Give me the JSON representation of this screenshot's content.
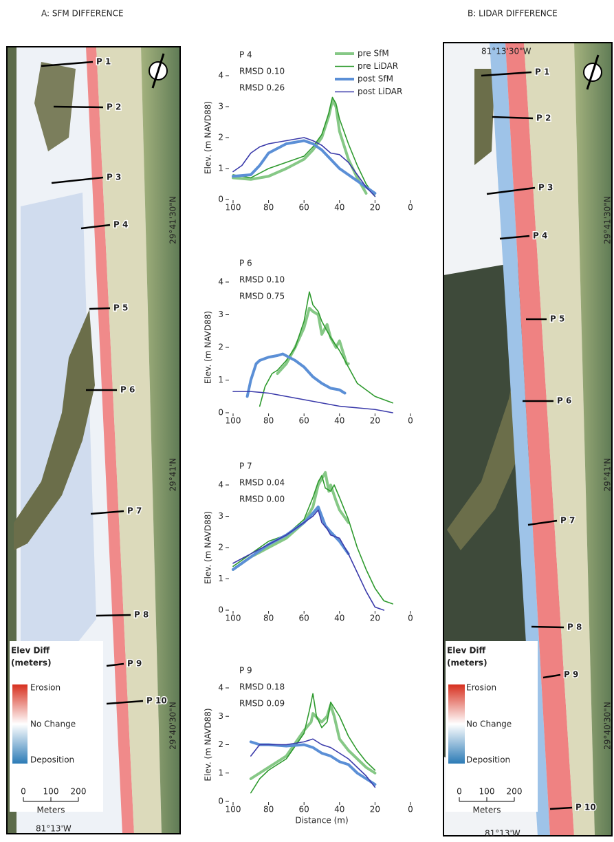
{
  "maps": [
    {
      "title": "A: SFM DIFFERENCE",
      "profiles": [
        "P 1",
        "P 2",
        "P 3",
        "P 4",
        "P 5",
        "P 6",
        "P 7",
        "P 8",
        "P 9",
        "P 10"
      ],
      "legend_title": [
        "Elev Diff",
        "(meters)"
      ],
      "legend_labels": [
        "Erosion",
        "No Change",
        "Deposition"
      ],
      "scale_ticks": [
        0,
        100,
        200
      ],
      "scale_unit": "Meters",
      "lat_labels": [
        "29°41'30\"N",
        "29°41'N",
        "29°40'30\"N"
      ],
      "lon_labels": [
        "81°13'W"
      ]
    },
    {
      "title": "B: LIDAR DIFFERENCE",
      "profiles": [
        "P 1",
        "P 2",
        "P 3",
        "P 4",
        "P 5",
        "P 6",
        "P 7",
        "P 8",
        "P 9",
        "P 10"
      ],
      "legend_title": [
        "Elev Diff",
        "(meters)"
      ],
      "legend_labels": [
        "Erosion",
        "No Change",
        "Deposition"
      ],
      "scale_ticks": [
        0,
        100,
        200
      ],
      "scale_unit": "Meters",
      "lat_labels": [
        "29°41'30\"N",
        "29°41'N",
        "29°40'30\"N"
      ],
      "lon_labels": [
        "81°13'30\"W",
        "81°13'W"
      ]
    }
  ],
  "chart_data": [
    {
      "type": "line",
      "title": "P 4",
      "ylabel": "Elev. (m NAVD88)",
      "annotations": [
        "RMSD 0.10",
        "RMSD 0.26"
      ],
      "annotation_colors": [
        "#2e9a2e",
        "#3f50b0"
      ],
      "xlim": [
        100,
        0
      ],
      "xticks": [
        100,
        80,
        60,
        40,
        20,
        0
      ],
      "ylim": [
        0,
        4.3
      ],
      "yticks": [
        0,
        1,
        2,
        3,
        4
      ],
      "legend": "upper right",
      "series": [
        {
          "name": "pre SfM",
          "color": "#86c886",
          "x": [
            100,
            90,
            80,
            70,
            60,
            55,
            50,
            46,
            44,
            42,
            40,
            35,
            30,
            25
          ],
          "values": [
            0.7,
            0.65,
            0.75,
            1.0,
            1.3,
            1.6,
            2.0,
            2.7,
            3.2,
            3.0,
            2.2,
            1.3,
            0.7,
            0.2
          ]
        },
        {
          "name": "pre LiDAR",
          "color": "#2e9a2e",
          "x": [
            100,
            90,
            80,
            70,
            60,
            55,
            50,
            46,
            44,
            42,
            40,
            35,
            30,
            25,
            20
          ],
          "values": [
            0.8,
            0.7,
            1.0,
            1.2,
            1.4,
            1.7,
            2.1,
            2.8,
            3.3,
            3.1,
            2.6,
            1.8,
            1.1,
            0.5,
            0.1
          ]
        },
        {
          "name": "post SfM",
          "color": "#5b8fd6",
          "x": [
            100,
            90,
            85,
            80,
            70,
            65,
            60,
            55,
            50,
            45,
            40,
            35,
            30,
            25,
            20
          ],
          "values": [
            0.75,
            0.8,
            1.1,
            1.5,
            1.8,
            1.85,
            1.9,
            1.8,
            1.6,
            1.3,
            1.0,
            0.8,
            0.6,
            0.4,
            0.2
          ]
        },
        {
          "name": "post LiDAR",
          "color": "#3a3aaa",
          "x": [
            100,
            95,
            90,
            85,
            80,
            70,
            60,
            55,
            50,
            45,
            40,
            35,
            30,
            25,
            20
          ],
          "values": [
            0.9,
            1.1,
            1.5,
            1.7,
            1.8,
            1.9,
            2.0,
            1.9,
            1.75,
            1.5,
            1.45,
            1.2,
            0.8,
            0.4,
            0.1
          ]
        }
      ]
    },
    {
      "type": "line",
      "title": "P 6",
      "ylabel": "Elev. (m NAVD88)",
      "annotations": [
        "RMSD 0.10",
        "RMSD 0.75"
      ],
      "annotation_colors": [
        "#2e9a2e",
        "#3f50b0"
      ],
      "xlim": [
        100,
        0
      ],
      "xticks": [
        100,
        80,
        60,
        40,
        20,
        0
      ],
      "ylim": [
        0,
        4.3
      ],
      "yticks": [
        0,
        1,
        2,
        3,
        4
      ],
      "series": [
        {
          "color": "#86c886",
          "x": [
            75,
            70,
            65,
            60,
            57,
            55,
            52,
            50,
            47,
            45,
            42,
            40,
            36,
            35
          ],
          "values": [
            1.2,
            1.5,
            2.0,
            2.6,
            3.2,
            3.1,
            3.0,
            2.4,
            2.7,
            2.3,
            2.0,
            2.2,
            1.5,
            1.5
          ]
        },
        {
          "color": "#2e9a2e",
          "x": [
            85,
            82,
            78,
            75,
            70,
            65,
            60,
            57,
            55,
            52,
            50,
            45,
            40,
            35,
            30,
            20,
            15,
            10
          ],
          "values": [
            0.2,
            0.8,
            1.2,
            1.3,
            1.6,
            2.0,
            2.8,
            3.7,
            3.3,
            3.1,
            2.8,
            2.3,
            1.9,
            1.4,
            0.9,
            0.5,
            0.4,
            0.3
          ]
        },
        {
          "color": "#5b8fd6",
          "x": [
            92,
            90,
            87,
            85,
            80,
            75,
            72,
            65,
            60,
            55,
            50,
            45,
            40,
            37
          ],
          "values": [
            0.5,
            1.0,
            1.5,
            1.6,
            1.7,
            1.75,
            1.8,
            1.6,
            1.4,
            1.1,
            0.9,
            0.75,
            0.7,
            0.6
          ]
        },
        {
          "color": "#3a3aaa",
          "x": [
            100,
            90,
            80,
            70,
            60,
            50,
            40,
            30,
            20,
            10
          ],
          "values": [
            0.65,
            0.65,
            0.6,
            0.5,
            0.4,
            0.3,
            0.2,
            0.15,
            0.1,
            0.0
          ]
        }
      ]
    },
    {
      "type": "line",
      "title": "P 7",
      "ylabel": "Elev. (m NAVD88)",
      "annotations": [
        "RMSD 0.04",
        "RMSD 0.00"
      ],
      "annotation_colors": [
        "#2e9a2e",
        "#3f50b0"
      ],
      "xlim": [
        100,
        0
      ],
      "xticks": [
        100,
        80,
        60,
        40,
        20,
        0
      ],
      "ylim": [
        0,
        4.3
      ],
      "yticks": [
        0,
        1,
        2,
        3,
        4
      ],
      "series": [
        {
          "color": "#86c886",
          "x": [
            100,
            90,
            80,
            70,
            60,
            55,
            52,
            50,
            48,
            46,
            45,
            42,
            40,
            35
          ],
          "values": [
            1.3,
            1.7,
            2.0,
            2.3,
            2.8,
            3.3,
            4.0,
            4.2,
            4.4,
            3.8,
            4.0,
            3.5,
            3.2,
            2.8
          ]
        },
        {
          "color": "#2e9a2e",
          "x": [
            100,
            90,
            80,
            70,
            60,
            55,
            52,
            50,
            48,
            45,
            43,
            40,
            35,
            30,
            25,
            20,
            15,
            10
          ],
          "values": [
            1.4,
            1.8,
            2.2,
            2.4,
            2.9,
            3.6,
            4.1,
            4.3,
            3.9,
            3.8,
            4.0,
            3.6,
            2.9,
            2.0,
            1.3,
            0.7,
            0.3,
            0.2
          ]
        },
        {
          "color": "#5b8fd6",
          "x": [
            100,
            90,
            80,
            70,
            60,
            55,
            52,
            50,
            48,
            45,
            40,
            35
          ],
          "values": [
            1.3,
            1.7,
            2.1,
            2.4,
            2.8,
            3.1,
            3.3,
            3.0,
            2.7,
            2.5,
            2.2,
            1.8
          ]
        },
        {
          "color": "#3a3aaa",
          "x": [
            100,
            90,
            80,
            70,
            60,
            55,
            52,
            50,
            47,
            45,
            40,
            35,
            30,
            25,
            20,
            15
          ],
          "values": [
            1.5,
            1.8,
            2.1,
            2.4,
            2.8,
            3.0,
            3.2,
            2.8,
            2.6,
            2.4,
            2.3,
            1.8,
            1.2,
            0.6,
            0.1,
            0.0
          ]
        }
      ]
    },
    {
      "type": "line",
      "title": "P 9",
      "ylabel": "Elev. (m NAVD88)",
      "xlabel": "Distance (m)",
      "annotations": [
        "RMSD 0.18",
        "RMSD 0.09"
      ],
      "annotation_colors": [
        "#2e9a2e",
        "#3f50b0"
      ],
      "xlim": [
        100,
        0
      ],
      "xticks": [
        100,
        80,
        60,
        40,
        20,
        0
      ],
      "ylim": [
        0,
        4.3
      ],
      "yticks": [
        0,
        1,
        2,
        3,
        4
      ],
      "series": [
        {
          "color": "#86c886",
          "x": [
            90,
            85,
            80,
            70,
            60,
            56,
            55,
            52,
            50,
            47,
            45,
            43,
            40,
            35,
            30,
            25,
            20
          ],
          "values": [
            0.8,
            1.0,
            1.2,
            1.6,
            2.5,
            2.8,
            3.1,
            2.9,
            2.8,
            3.0,
            3.4,
            3.0,
            2.2,
            1.8,
            1.5,
            1.2,
            1.0
          ]
        },
        {
          "color": "#2e9a2e",
          "x": [
            90,
            85,
            80,
            70,
            60,
            57,
            55,
            53,
            50,
            47,
            45,
            43,
            40,
            35,
            30,
            25,
            20
          ],
          "values": [
            0.3,
            0.8,
            1.1,
            1.5,
            2.4,
            3.2,
            3.8,
            3.0,
            2.6,
            2.8,
            3.5,
            3.3,
            3.0,
            2.3,
            1.8,
            1.4,
            1.1
          ]
        },
        {
          "color": "#5b8fd6",
          "x": [
            90,
            85,
            80,
            70,
            60,
            55,
            50,
            45,
            40,
            35,
            30,
            25,
            20
          ],
          "values": [
            2.1,
            2.0,
            2.0,
            1.95,
            2.0,
            1.9,
            1.7,
            1.6,
            1.4,
            1.3,
            1.0,
            0.8,
            0.6
          ]
        },
        {
          "color": "#3a3aaa",
          "x": [
            90,
            85,
            80,
            70,
            60,
            55,
            50,
            45,
            40,
            35,
            30,
            25,
            20
          ],
          "values": [
            1.6,
            2.0,
            2.0,
            2.0,
            2.1,
            2.2,
            2.0,
            1.9,
            1.7,
            1.5,
            1.2,
            0.9,
            0.5
          ]
        }
      ]
    }
  ]
}
